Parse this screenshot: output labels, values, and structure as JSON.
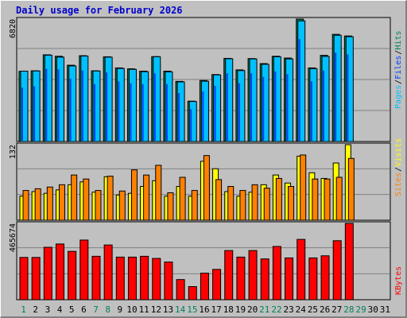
{
  "title": "Daily usage for February 2026",
  "colors": {
    "hits": "#00805c",
    "files": "#0040ff",
    "pages": "#00c0ff",
    "visits": "#ffff00",
    "sites": "#ff8000",
    "kbytes": "#ff0000",
    "weekday_label": "#000000",
    "weekend_label": "#00805c"
  },
  "chart_data": [
    {
      "type": "bar",
      "name": "hits-files-pages",
      "y_max_label": "6820",
      "ylim": [
        0,
        6820
      ],
      "legend": [
        {
          "label": "Hits",
          "color_key": "hits"
        },
        {
          "label": "Files",
          "color_key": "files"
        },
        {
          "label": "Pages",
          "color_key": "pages"
        }
      ],
      "categories": [
        "1",
        "2",
        "3",
        "4",
        "5",
        "6",
        "7",
        "8",
        "9",
        "10",
        "11",
        "12",
        "13",
        "14",
        "15",
        "16",
        "17",
        "18",
        "19",
        "20",
        "21",
        "22",
        "23",
        "24",
        "25",
        "26",
        "27",
        "28",
        "29",
        "30",
        "31"
      ],
      "weekend_days": [
        1,
        7,
        8,
        14,
        15,
        21,
        22,
        28,
        29
      ],
      "series": [
        {
          "name": "Hits",
          "values": [
            3910,
            3940,
            4830,
            4750,
            4250,
            4780,
            3940,
            4720,
            4100,
            4050,
            3920,
            4730,
            3920,
            3350,
            2250,
            3400,
            3730,
            4630,
            3990,
            4620,
            4340,
            4750,
            4650,
            6820,
            4100,
            4800,
            5970,
            5880,
            null,
            null,
            null
          ]
        },
        {
          "name": "Files",
          "values": [
            3000,
            3070,
            4050,
            4020,
            3500,
            3950,
            3200,
            3850,
            3350,
            3250,
            3200,
            3800,
            3200,
            2700,
            1800,
            2800,
            3100,
            3800,
            3250,
            3800,
            3600,
            3900,
            3750,
            5700,
            3350,
            3950,
            4950,
            4850,
            null,
            null,
            null
          ]
        },
        {
          "name": "Pages",
          "values": [
            3920,
            3930,
            4810,
            4700,
            4210,
            4760,
            3930,
            4700,
            4070,
            4020,
            3890,
            4720,
            3880,
            3320,
            2230,
            3360,
            3710,
            4610,
            3950,
            4600,
            4300,
            4720,
            4600,
            6720,
            4060,
            4740,
            5920,
            5840,
            null,
            null,
            null
          ]
        }
      ]
    },
    {
      "type": "bar",
      "name": "visits-sites",
      "y_max_label": "132",
      "ylim": [
        0,
        132
      ],
      "legend": [
        {
          "label": "Visits",
          "color_key": "visits"
        },
        {
          "label": "Sites",
          "color_key": "sites"
        }
      ],
      "categories": [
        "1",
        "2",
        "3",
        "4",
        "5",
        "6",
        "7",
        "8",
        "9",
        "10",
        "11",
        "12",
        "13",
        "14",
        "15",
        "16",
        "17",
        "18",
        "19",
        "20",
        "21",
        "22",
        "23",
        "24",
        "25",
        "26",
        "27",
        "28",
        "29",
        "30",
        "31"
      ],
      "series": [
        {
          "name": "Visits",
          "values": [
            42,
            50,
            47,
            53,
            62,
            67,
            49,
            76,
            44,
            47,
            59,
            69,
            42,
            59,
            42,
            103,
            90,
            50,
            42,
            49,
            62,
            79,
            65,
            112,
            83,
            73,
            100,
            132,
            null,
            null,
            null
          ]
        },
        {
          "name": "Sites",
          "values": [
            52,
            55,
            58,
            62,
            79,
            72,
            52,
            77,
            51,
            88,
            79,
            96,
            48,
            75,
            52,
            113,
            71,
            59,
            52,
            62,
            56,
            73,
            59,
            114,
            72,
            72,
            75,
            108,
            null,
            null,
            null
          ]
        }
      ]
    },
    {
      "type": "bar",
      "name": "kbytes",
      "y_max_label": "465674",
      "ylim": [
        0,
        465674
      ],
      "legend": [
        {
          "label": "KBytes",
          "color_key": "kbytes"
        }
      ],
      "categories": [
        "1",
        "2",
        "3",
        "4",
        "5",
        "6",
        "7",
        "8",
        "9",
        "10",
        "11",
        "12",
        "13",
        "14",
        "15",
        "16",
        "17",
        "18",
        "19",
        "20",
        "21",
        "22",
        "23",
        "24",
        "25",
        "26",
        "27",
        "28",
        "29",
        "30",
        "31"
      ],
      "series": [
        {
          "name": "KBytes",
          "values": [
            258000,
            258000,
            320000,
            340000,
            295000,
            364000,
            265000,
            334000,
            260000,
            260000,
            265000,
            252000,
            230000,
            123000,
            80000,
            162000,
            185000,
            300000,
            260000,
            300000,
            249000,
            325000,
            255000,
            368000,
            255000,
            268000,
            360000,
            465674,
            null,
            null,
            null
          ]
        }
      ]
    }
  ]
}
